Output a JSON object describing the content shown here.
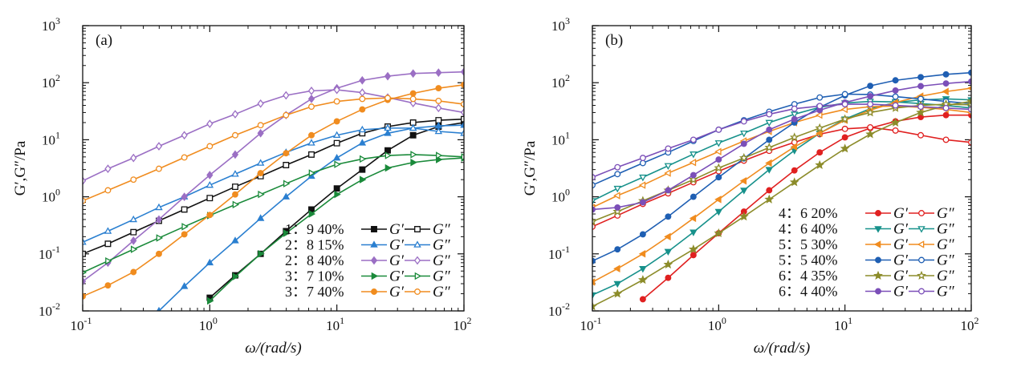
{
  "chart_data": [
    {
      "panel": "(a)",
      "type": "line",
      "xlabel": "ω/(rad/s)",
      "ylabel": "G′,G″/Pa",
      "xscale": "log",
      "yscale": "log",
      "xlim": [
        0.1,
        100
      ],
      "ylim": [
        0.01,
        1000
      ],
      "x_ticks": [
        "10",
        "10",
        "10",
        "10"
      ],
      "x_tick_exps": [
        "-1",
        "0",
        "1",
        "2"
      ],
      "y_ticks": [
        "10",
        "10",
        "10",
        "10",
        "10",
        "10"
      ],
      "y_tick_exps": [
        "-2",
        "-1",
        "0",
        "1",
        "2",
        "3"
      ],
      "legend_placement": "bottom-right",
      "groups": [
        {
          "label": "1：9  40%",
          "color": "#111111",
          "marker": "square",
          "gp_label": "G′",
          "gpp_label": "G″",
          "x": [
            0.1,
            0.158,
            0.251,
            0.398,
            0.631,
            1,
            1.585,
            2.512,
            3.981,
            6.31,
            10,
            15.85,
            25.12,
            39.81,
            63.1,
            100
          ],
          "Gp": [
            null,
            null,
            null,
            null,
            null,
            0.017,
            0.042,
            0.1,
            0.25,
            0.6,
            1.4,
            3.0,
            6.5,
            12,
            17,
            20
          ],
          "Gpp": [
            0.1,
            0.15,
            0.24,
            0.38,
            0.6,
            0.95,
            1.5,
            2.3,
            3.6,
            5.5,
            8.7,
            13,
            17,
            20,
            22,
            23
          ]
        },
        {
          "label": "2：8  15%",
          "color": "#2a7fd0",
          "marker": "triangle",
          "gp_label": "G′",
          "gpp_label": "G″",
          "x": [
            0.1,
            0.158,
            0.251,
            0.398,
            0.631,
            1,
            1.585,
            2.512,
            3.981,
            6.31,
            10,
            15.85,
            25.12,
            39.81,
            63.1,
            100
          ],
          "Gp": [
            null,
            null,
            null,
            0.01,
            0.027,
            0.07,
            0.17,
            0.42,
            1.0,
            2.3,
            4.8,
            8.8,
            13,
            16,
            17.5,
            18
          ],
          "Gpp": [
            0.16,
            0.25,
            0.4,
            0.65,
            1.0,
            1.6,
            2.5,
            3.9,
            6.0,
            8.8,
            12,
            15,
            16,
            16,
            14,
            13
          ]
        },
        {
          "label": "2：8  40%",
          "color": "#9b6fc4",
          "marker": "diamond",
          "gp_label": "G′",
          "gpp_label": "G″",
          "x": [
            0.1,
            0.158,
            0.251,
            0.398,
            0.631,
            1,
            1.585,
            2.512,
            3.981,
            6.31,
            10,
            15.85,
            25.12,
            39.81,
            63.1,
            100
          ],
          "Gp": [
            0.033,
            0.07,
            0.17,
            0.4,
            1.0,
            2.4,
            5.5,
            13,
            27,
            52,
            80,
            110,
            130,
            145,
            150,
            155
          ],
          "Gpp": [
            1.9,
            3.1,
            4.8,
            7.7,
            12,
            19,
            28,
            43,
            60,
            72,
            75,
            67,
            55,
            44,
            36,
            30
          ]
        },
        {
          "label": "3：7  10%",
          "color": "#1a8a3a",
          "marker": "triangle-right",
          "gp_label": "G′",
          "gpp_label": "G″",
          "x": [
            0.1,
            0.158,
            0.251,
            0.398,
            0.631,
            1,
            1.585,
            2.512,
            3.981,
            6.31,
            10,
            15.85,
            25.12,
            39.81,
            63.1,
            100
          ],
          "Gp": [
            null,
            null,
            null,
            null,
            null,
            0.015,
            0.04,
            0.1,
            0.23,
            0.5,
            1.1,
            2.0,
            3.2,
            4.0,
            4.5,
            4.8
          ],
          "Gpp": [
            0.047,
            0.075,
            0.12,
            0.19,
            0.3,
            0.47,
            0.73,
            1.1,
            1.7,
            2.6,
            3.7,
            4.6,
            5.3,
            5.5,
            5.3,
            5.0
          ]
        },
        {
          "label": "3：7  40%",
          "color": "#f08c1f",
          "marker": "circle",
          "gp_label": "G′",
          "gpp_label": "G″",
          "x": [
            0.1,
            0.158,
            0.251,
            0.398,
            0.631,
            1,
            1.585,
            2.512,
            3.981,
            6.31,
            10,
            15.85,
            25.12,
            39.81,
            63.1,
            100
          ],
          "Gp": [
            0.018,
            0.028,
            0.048,
            0.1,
            0.22,
            0.48,
            1.1,
            2.6,
            5.8,
            12,
            21,
            34,
            50,
            65,
            80,
            92
          ],
          "Gpp": [
            0.85,
            1.3,
            2.0,
            3.1,
            4.9,
            7.7,
            12,
            18,
            27,
            38,
            47,
            52,
            54,
            52,
            48,
            42
          ]
        }
      ]
    },
    {
      "panel": "(b)",
      "type": "line",
      "xlabel": "ω/(rad/s)",
      "ylabel": "G′,G″/Pa",
      "xscale": "log",
      "yscale": "log",
      "xlim": [
        0.1,
        100
      ],
      "ylim": [
        0.01,
        1000
      ],
      "x_ticks": [
        "10",
        "10",
        "10",
        "10"
      ],
      "x_tick_exps": [
        "-1",
        "0",
        "1",
        "2"
      ],
      "y_ticks": [
        "10",
        "10",
        "10",
        "10",
        "10",
        "10"
      ],
      "y_tick_exps": [
        "-2",
        "-1",
        "0",
        "1",
        "2",
        "3"
      ],
      "legend_placement": "bottom-center",
      "groups": [
        {
          "label": "4：6  20%",
          "color": "#e02020",
          "marker": "circle",
          "gp_label": "G′",
          "gpp_label": "G″",
          "x": [
            0.1,
            0.158,
            0.251,
            0.398,
            0.631,
            1,
            1.585,
            2.512,
            3.981,
            6.31,
            10,
            15.85,
            25.12,
            39.81,
            63.1,
            100
          ],
          "Gp": [
            null,
            null,
            0.016,
            0.038,
            0.095,
            0.23,
            0.55,
            1.3,
            2.9,
            6.0,
            11,
            16,
            21,
            25,
            27,
            27
          ],
          "Gpp": [
            0.3,
            0.47,
            0.75,
            1.15,
            1.8,
            2.8,
            4.3,
            6.4,
            9.0,
            12.5,
            15.5,
            16.5,
            14.5,
            12,
            10,
            9
          ]
        },
        {
          "label": "4：6  40%",
          "color": "#17918b",
          "marker": "triangle-down",
          "gp_label": "G′",
          "gpp_label": "G″",
          "x": [
            0.1,
            0.158,
            0.251,
            0.398,
            0.631,
            1,
            1.585,
            2.512,
            3.981,
            6.31,
            10,
            15.85,
            25.12,
            39.81,
            63.1,
            100
          ],
          "Gp": [
            0.019,
            0.03,
            0.055,
            0.11,
            0.24,
            0.55,
            1.3,
            3.0,
            6.5,
            13,
            23,
            35,
            45,
            50,
            52,
            50
          ],
          "Gpp": [
            0.85,
            1.4,
            2.2,
            3.5,
            5.6,
            8.8,
            13,
            20,
            28,
            37,
            44,
            47,
            46,
            43,
            40,
            36
          ]
        },
        {
          "label": "5：5  30%",
          "color": "#f08c1f",
          "marker": "triangle-left",
          "gp_label": "G′",
          "gpp_label": "G″",
          "x": [
            0.1,
            0.158,
            0.251,
            0.398,
            0.631,
            1,
            1.585,
            2.512,
            3.981,
            6.31,
            10,
            15.85,
            25.12,
            39.81,
            63.1,
            100
          ],
          "Gp": [
            0.032,
            0.055,
            0.1,
            0.2,
            0.42,
            0.9,
            1.9,
            3.9,
            7.5,
            13,
            22,
            33,
            45,
            58,
            70,
            80
          ],
          "Gpp": [
            0.65,
            1.05,
            1.6,
            2.6,
            4.0,
            6.2,
            9.5,
            14,
            20,
            27,
            34,
            38,
            39,
            37,
            34,
            30
          ]
        },
        {
          "label": "5：5  40%",
          "color": "#1f5fb3",
          "marker": "circle",
          "gp_label": "G′",
          "gpp_label": "G″",
          "x": [
            0.1,
            0.158,
            0.251,
            0.398,
            0.631,
            1,
            1.585,
            2.512,
            3.981,
            6.31,
            10,
            15.85,
            25.12,
            39.81,
            63.1,
            100
          ],
          "Gp": [
            0.075,
            0.12,
            0.22,
            0.45,
            1.0,
            2.2,
            4.7,
            10,
            20,
            37,
            60,
            88,
            110,
            125,
            140,
            150
          ],
          "Gpp": [
            1.6,
            2.5,
            3.9,
            6.0,
            9.5,
            15,
            22,
            31,
            42,
            55,
            63,
            62,
            57,
            52,
            47,
            43
          ]
        },
        {
          "label": "6：4  35%",
          "color": "#8c8c2a",
          "marker": "star",
          "gp_label": "G′",
          "gpp_label": "G″",
          "x": [
            0.1,
            0.158,
            0.251,
            0.398,
            0.631,
            1,
            1.585,
            2.512,
            3.981,
            6.31,
            10,
            15.85,
            25.12,
            39.81,
            63.1,
            100
          ],
          "Gp": [
            0.012,
            0.02,
            0.035,
            0.065,
            0.12,
            0.23,
            0.45,
            0.9,
            1.8,
            3.6,
            7.0,
            12.5,
            20,
            30,
            40,
            47
          ],
          "Gpp": [
            0.37,
            0.55,
            0.85,
            1.3,
            2.0,
            3.2,
            4.8,
            7.3,
            11,
            16,
            23,
            30,
            36,
            40,
            42,
            41
          ]
        },
        {
          "label": "6：4  40%",
          "color": "#7b4fb8",
          "marker": "circle",
          "gp_label": "G′",
          "gpp_label": "G″",
          "x": [
            0.1,
            0.158,
            0.251,
            0.398,
            0.631,
            1,
            1.585,
            2.512,
            3.981,
            6.31,
            10,
            15.85,
            25.12,
            39.81,
            63.1,
            100
          ],
          "Gp": [
            0.6,
            0.65,
            0.8,
            1.3,
            2.4,
            4.5,
            8.5,
            15,
            23,
            33,
            45,
            58,
            73,
            87,
            97,
            105
          ],
          "Gpp": [
            2.2,
            3.3,
            4.8,
            7.0,
            10,
            15,
            21,
            28,
            35,
            39,
            42,
            42,
            40,
            38,
            36,
            34
          ]
        }
      ]
    }
  ]
}
